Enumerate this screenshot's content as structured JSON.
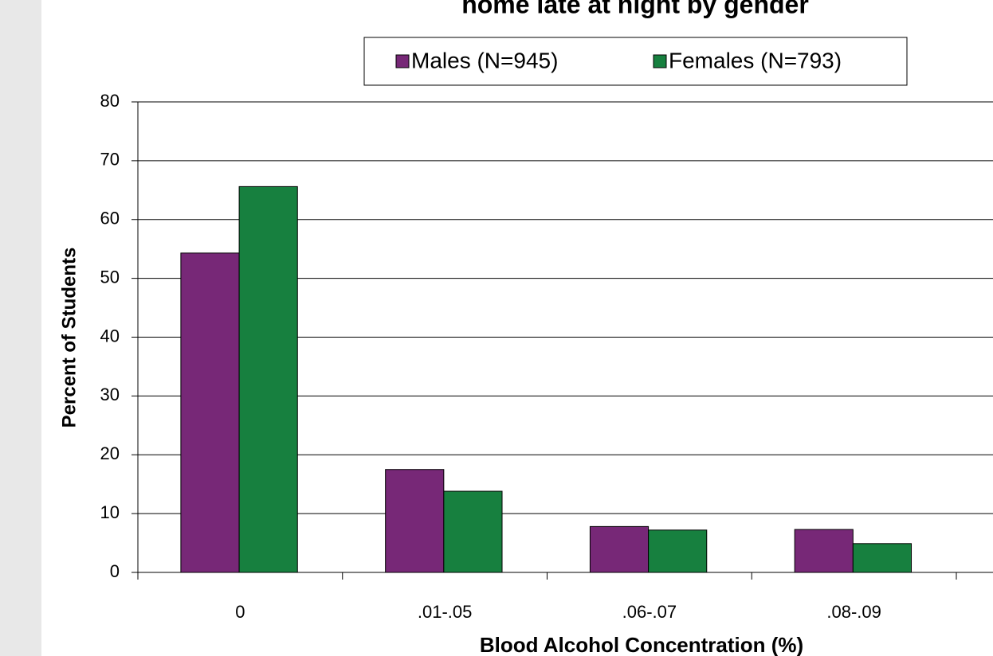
{
  "chart_data": {
    "type": "bar",
    "title": "home late at night by gender",
    "x_label": "Blood Alcohol Concentration (%)",
    "y_label": "Percent of Students",
    "categories": [
      "0",
      ".01-.05",
      ".06-.07",
      ".08-.09"
    ],
    "series": [
      {
        "name": "Males (N=945)",
        "color": "#772877",
        "values": [
          54.3,
          17.5,
          7.8,
          7.3
        ]
      },
      {
        "name": "Females (N=793)",
        "color": "#17803f",
        "values": [
          65.6,
          13.8,
          7.2,
          4.9
        ]
      }
    ],
    "ylim": [
      0,
      80
    ],
    "yticks": [
      0,
      10,
      20,
      30,
      40,
      50,
      60,
      70,
      80
    ],
    "grid": true,
    "legend": "top"
  }
}
